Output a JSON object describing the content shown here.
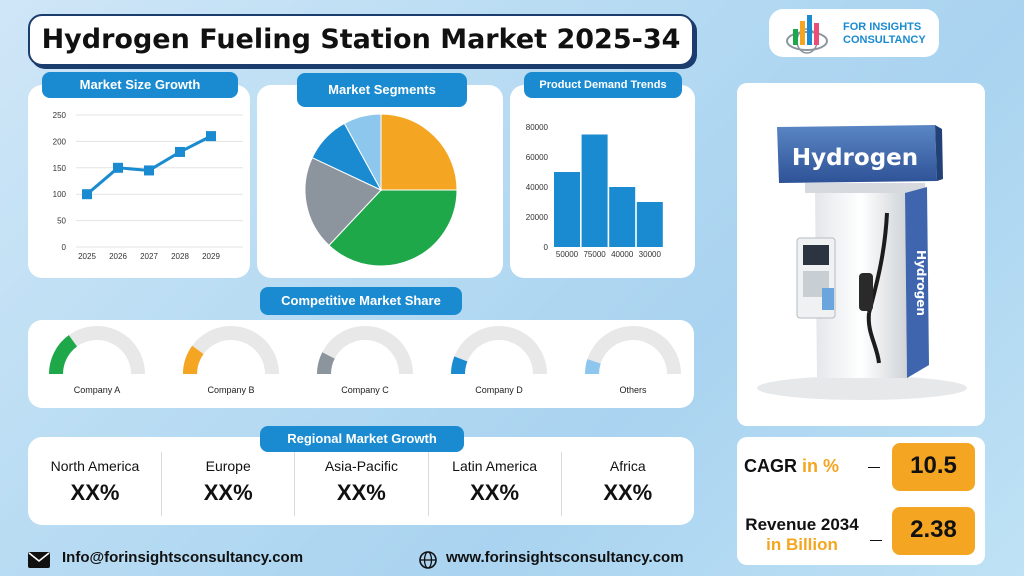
{
  "header": {
    "title": "Hydrogen Fueling Station Market 2025-34"
  },
  "logo": {
    "line1": "FOR INSIGHTS",
    "line2": "CONSULTANCY",
    "icon": "bar-chart-globe-icon"
  },
  "sections": {
    "market_size": "Market Size Growth",
    "segments": "Market Segments",
    "demand": "Product Demand Trends",
    "competitive": "Competitive Market Share",
    "regional": "Regional Market Growth"
  },
  "chart_data": [
    {
      "type": "line",
      "title": "Market Size Growth",
      "x": [
        "2025",
        "2026",
        "2027",
        "2028",
        "2029"
      ],
      "values": [
        100,
        150,
        145,
        180,
        210
      ],
      "ylim": [
        0,
        250
      ],
      "yticks": [
        0,
        50,
        100,
        150,
        200,
        250
      ],
      "color": "#1a8bd0",
      "grid": true
    },
    {
      "type": "pie",
      "title": "Market Segments",
      "values": [
        25,
        37,
        20,
        10,
        8
      ],
      "colors": [
        "#f4a623",
        "#1fa84a",
        "#8c959e",
        "#1a8bd0",
        "#8ec7ee"
      ]
    },
    {
      "type": "bar",
      "title": "Product Demand Trends",
      "categories": [
        "50000",
        "75000",
        "40000",
        "30000"
      ],
      "values": [
        50000,
        75000,
        40000,
        30000
      ],
      "ylim": [
        0,
        80000
      ],
      "yticks": [
        0,
        20000,
        40000,
        60000,
        80000
      ],
      "color": "#1a8bd0"
    }
  ],
  "competitors": [
    {
      "name": "Company A",
      "share": 0.3,
      "color": "#1fa84a"
    },
    {
      "name": "Company B",
      "share": 0.2,
      "color": "#f4a623"
    },
    {
      "name": "Company C",
      "share": 0.15,
      "color": "#8c959e"
    },
    {
      "name": "Company D",
      "share": 0.12,
      "color": "#1a8bd0"
    },
    {
      "name": "Others",
      "share": 0.1,
      "color": "#8ec7ee"
    }
  ],
  "regions": [
    {
      "name": "North America",
      "value": "XX%"
    },
    {
      "name": "Europe",
      "value": "XX%"
    },
    {
      "name": "Asia-Pacific",
      "value": "XX%"
    },
    {
      "name": "Latin America",
      "value": "XX%"
    },
    {
      "name": "Africa",
      "value": "XX%"
    }
  ],
  "metrics": {
    "cagr_label": "CAGR",
    "cagr_unit": "in %",
    "cagr_value": "10.5",
    "revenue_label": "Revenue 2034",
    "revenue_unit": "in Billion",
    "revenue_value": "2.38"
  },
  "pump": {
    "sign": "Hydrogen",
    "side": "Hydrogen"
  },
  "footer": {
    "email": "Info@forinsightsconsultancy.com",
    "website": "www.forinsightsconsultancy.com",
    "email_icon": "envelope-icon",
    "web_icon": "globe-icon"
  }
}
